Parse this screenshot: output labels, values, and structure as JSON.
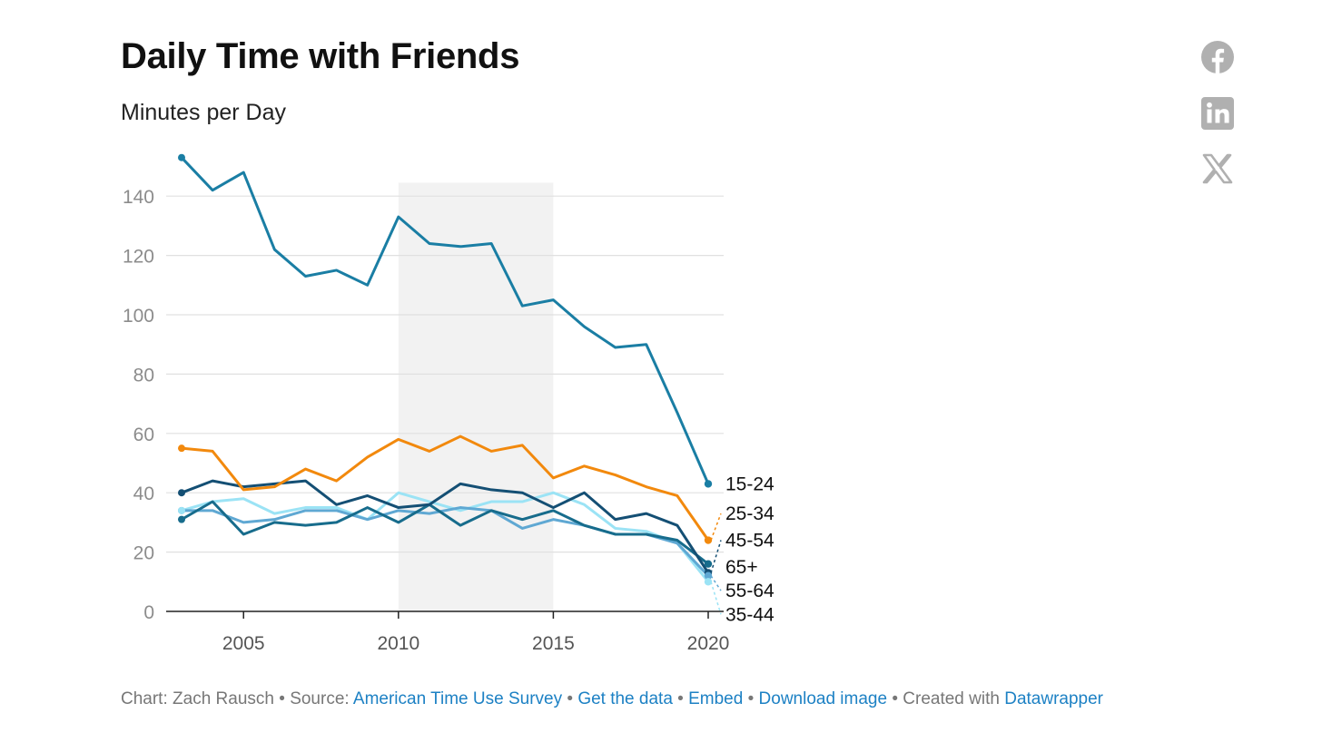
{
  "header": {
    "title": "Daily Time with Friends",
    "subtitle": "Minutes per Day"
  },
  "footer": {
    "chart_by": "Chart: Zach Rausch",
    "source_prefix": "Source:",
    "source_link": "American Time Use Survey",
    "get_data": "Get the data",
    "embed": "Embed",
    "download": "Download image",
    "created_prefix": "Created with",
    "created_link": "Datawrapper",
    "separator": "•"
  },
  "social": {
    "facebook_icon": "facebook-icon",
    "linkedin_icon": "linkedin-icon",
    "x_icon": "x-icon",
    "color": "#b0b0b0"
  },
  "chart_data": {
    "type": "line",
    "title": "Daily Time with Friends",
    "subtitle": "Minutes per Day",
    "xlabel": "",
    "ylabel": "",
    "xlim": [
      2003,
      2020
    ],
    "ylim": [
      0,
      150
    ],
    "x_ticks": [
      2005,
      2010,
      2015,
      2020
    ],
    "y_ticks": [
      0,
      20,
      40,
      60,
      80,
      100,
      120,
      140
    ],
    "grid": "horizontal",
    "legend": "direct labels at line ends (right)",
    "shaded_range": [
      2010,
      2015
    ],
    "x": [
      2003,
      2004,
      2005,
      2006,
      2007,
      2008,
      2009,
      2010,
      2011,
      2012,
      2013,
      2014,
      2015,
      2016,
      2017,
      2018,
      2019,
      2020
    ],
    "series": [
      {
        "name": "15-24",
        "color": "#1a7ea4",
        "label_value": 43,
        "values": [
          153,
          142,
          148,
          122,
          113,
          115,
          110,
          133,
          124,
          123,
          124,
          103,
          105,
          96,
          89,
          90,
          67,
          43
        ]
      },
      {
        "name": "25-34",
        "color": "#f2890d",
        "label_value": 33,
        "values": [
          55,
          54,
          41,
          42,
          48,
          44,
          52,
          58,
          54,
          59,
          54,
          56,
          45,
          49,
          46,
          42,
          39,
          24
        ]
      },
      {
        "name": "45-54",
        "color": "#144f74",
        "label_value": 24,
        "values": [
          40,
          44,
          42,
          43,
          44,
          36,
          39,
          35,
          36,
          43,
          41,
          40,
          35,
          40,
          31,
          33,
          29,
          13
        ]
      },
      {
        "name": "65+",
        "color": "#176c8c",
        "label_value": 15,
        "values": [
          31,
          37,
          26,
          30,
          29,
          30,
          35,
          30,
          36,
          29,
          34,
          31,
          34,
          29,
          26,
          26,
          24,
          16
        ]
      },
      {
        "name": "55-64",
        "color": "#5fa8d3",
        "label_value": 7,
        "values": [
          34,
          34,
          30,
          31,
          34,
          34,
          31,
          34,
          33,
          35,
          34,
          28,
          31,
          29,
          26,
          26,
          23,
          12
        ]
      },
      {
        "name": "35-44",
        "color": "#9be3f5",
        "label_value": -1,
        "values": [
          34,
          37,
          38,
          33,
          35,
          35,
          31,
          40,
          37,
          34,
          37,
          37,
          40,
          36,
          28,
          27,
          23,
          10
        ]
      }
    ]
  }
}
